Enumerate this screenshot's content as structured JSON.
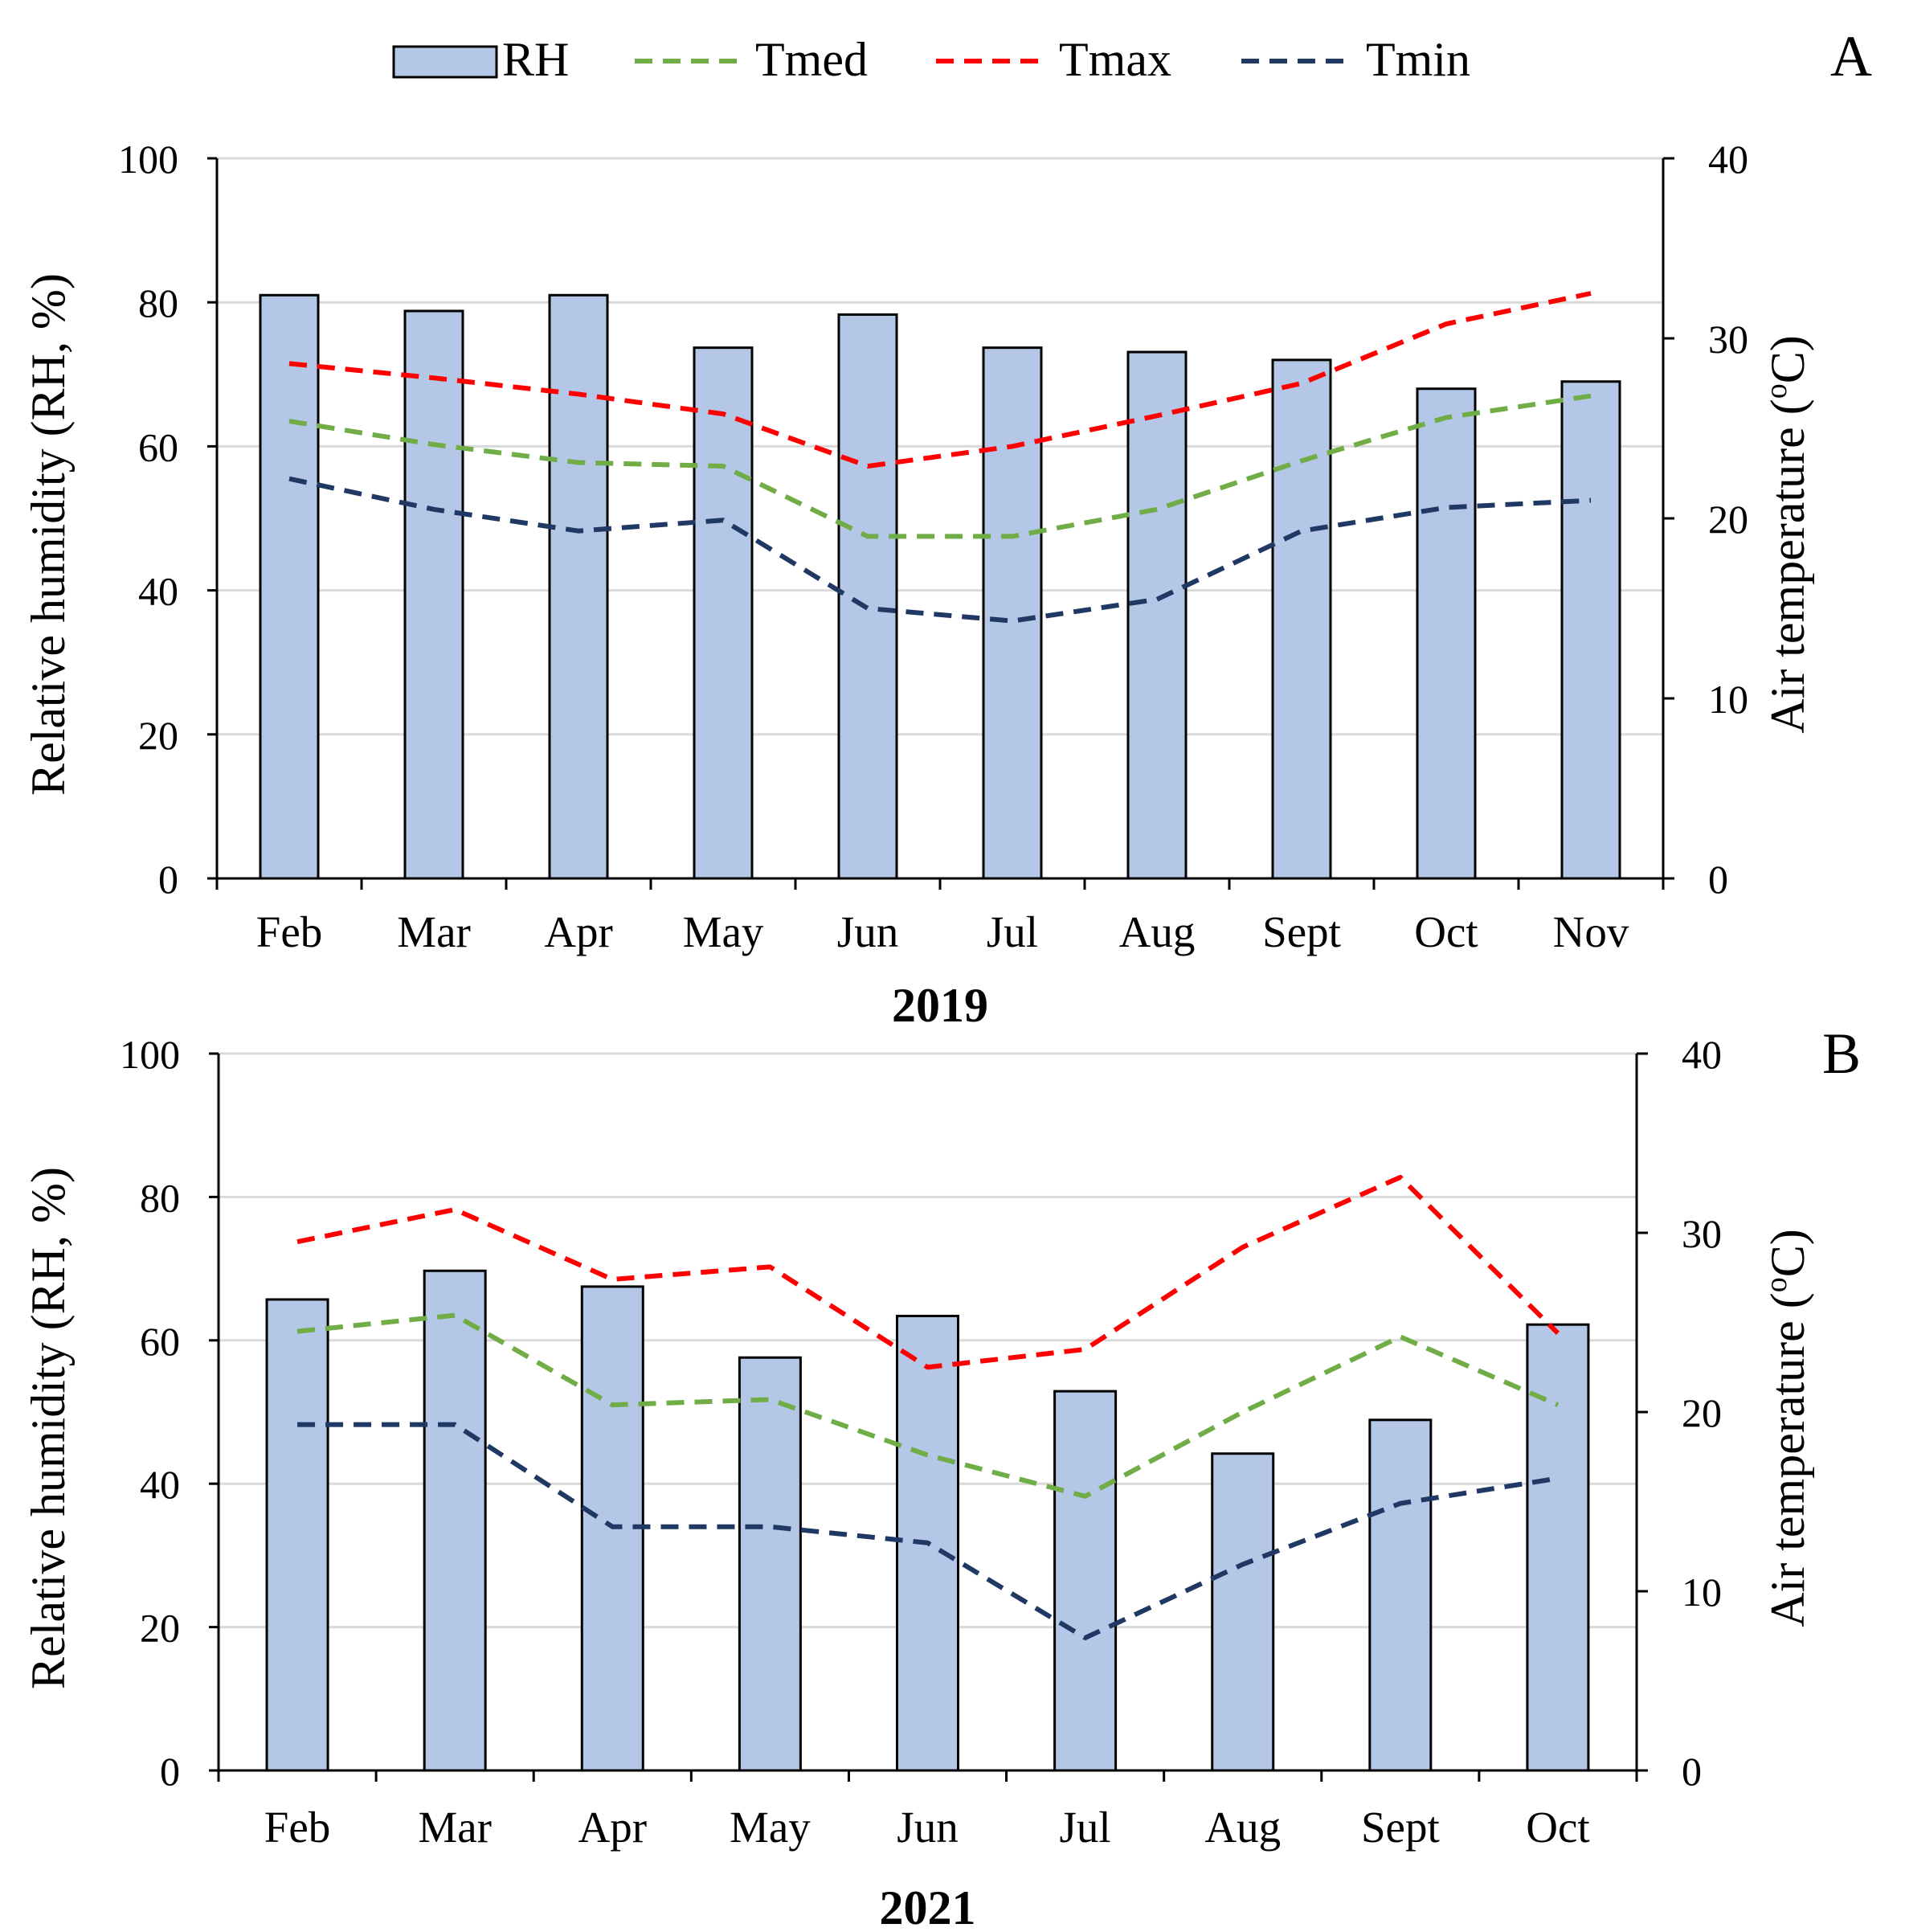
{
  "legend": {
    "items": [
      {
        "label": "RH",
        "kind": "bar",
        "color": "#b4c7e7"
      },
      {
        "label": "Tmed",
        "kind": "dash",
        "color": "#70ad47"
      },
      {
        "label": "Tmax",
        "kind": "dash",
        "color": "#ff0000"
      },
      {
        "label": "Tmin",
        "kind": "dash",
        "color": "#203864"
      }
    ]
  },
  "chart_data": [
    {
      "type": "bar",
      "panel_label": "A",
      "title": "",
      "xlabel": "2019",
      "ylabel": "Relative humidity (RH, %)",
      "y2label": "Air temperature (",
      "y2label_sup": "o",
      "y2label_end": "C)",
      "ylim": [
        0,
        100
      ],
      "y2lim": [
        0,
        40
      ],
      "yticks": [
        0,
        20,
        40,
        60,
        80,
        100
      ],
      "y2ticks": [
        0,
        10,
        20,
        30,
        40
      ],
      "grid": true,
      "categories": [
        "Feb",
        "Mar",
        "Apr",
        "May",
        "Jun",
        "Jul",
        "Aug",
        "Sept",
        "Oct",
        "Nov"
      ],
      "series": [
        {
          "name": "RH",
          "axis": "left",
          "kind": "bar",
          "color": "#b4c7e7",
          "values": [
            81,
            78.8,
            81,
            73.7,
            78.3,
            73.7,
            73.1,
            72,
            68,
            69
          ]
        },
        {
          "name": "Tmed",
          "axis": "right",
          "kind": "line",
          "color": "#70ad47",
          "values": [
            25.4,
            24.1,
            23.1,
            22.9,
            19,
            19,
            20.5,
            23.2,
            25.6,
            26.8
          ]
        },
        {
          "name": "Tmax",
          "axis": "right",
          "kind": "line",
          "color": "#ff0000",
          "values": [
            28.6,
            27.8,
            26.9,
            25.8,
            22.9,
            24,
            25.7,
            27.5,
            30.8,
            32.5
          ]
        },
        {
          "name": "Tmin",
          "axis": "right",
          "kind": "line",
          "color": "#203864",
          "values": [
            22.2,
            20.5,
            19.3,
            19.9,
            15,
            14.3,
            15.5,
            19.3,
            20.6,
            21
          ]
        }
      ]
    },
    {
      "type": "bar",
      "panel_label": "B",
      "title": "",
      "xlabel": "2021",
      "ylabel": "Relative humidity (RH, %)",
      "y2label": "Air temperature (",
      "y2label_sup": "o",
      "y2label_end": "C)",
      "ylim": [
        0,
        100
      ],
      "y2lim": [
        0,
        40
      ],
      "yticks": [
        0,
        20,
        40,
        60,
        80,
        100
      ],
      "y2ticks": [
        0,
        10,
        20,
        30,
        40
      ],
      "grid": true,
      "categories": [
        "Feb",
        "Mar",
        "Apr",
        "May",
        "Jun",
        "Jul",
        "Aug",
        "Sept",
        "Oct"
      ],
      "series": [
        {
          "name": "RH",
          "axis": "left",
          "kind": "bar",
          "color": "#b4c7e7",
          "values": [
            65.7,
            69.7,
            67.5,
            57.6,
            63.4,
            52.9,
            44.2,
            48.9,
            62.2
          ]
        },
        {
          "name": "Tmed",
          "axis": "right",
          "kind": "line",
          "color": "#70ad47",
          "values": [
            24.5,
            25.4,
            20.4,
            20.7,
            17.6,
            15.3,
            20,
            24.2,
            20.4
          ]
        },
        {
          "name": "Tmax",
          "axis": "right",
          "kind": "line",
          "color": "#ff0000",
          "values": [
            29.5,
            31.3,
            27.4,
            28.1,
            22.5,
            23.5,
            29.2,
            33.1,
            24.4
          ]
        },
        {
          "name": "Tmin",
          "axis": "right",
          "kind": "line",
          "color": "#203864",
          "values": [
            19.3,
            19.3,
            13.6,
            13.6,
            12.7,
            7.4,
            11.5,
            14.9,
            16.3
          ]
        }
      ]
    }
  ]
}
